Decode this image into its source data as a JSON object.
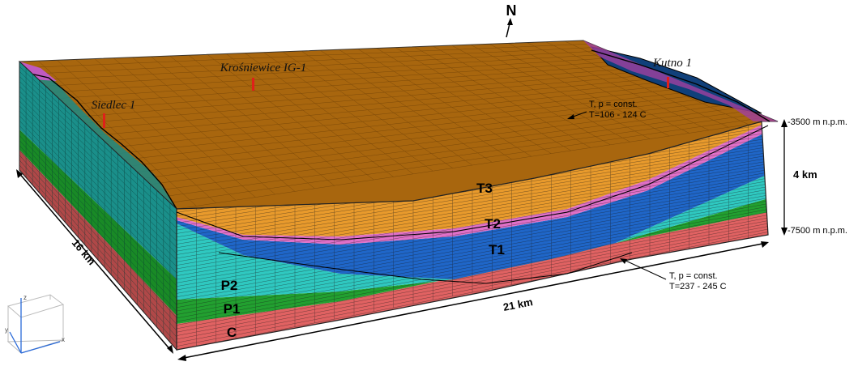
{
  "layers": [
    {
      "id": "T3",
      "label": "T3",
      "color": "#e89a2c"
    },
    {
      "id": "T2",
      "label": "T2",
      "color": "#e070c8"
    },
    {
      "id": "T1",
      "label": "T1",
      "color": "#1f66c8"
    },
    {
      "id": "P2",
      "label": "P2",
      "color": "#2fc8c0"
    },
    {
      "id": "P1",
      "label": "P1",
      "color": "#22a030"
    },
    {
      "id": "C",
      "label": "C",
      "color": "#e06262"
    }
  ],
  "surface_color": "#a8660e",
  "wells": [
    {
      "id": "krosniewice",
      "label": "Krośniewice IG-1"
    },
    {
      "id": "kutno",
      "label": "Kutno 1"
    },
    {
      "id": "siedlec",
      "label": "Siedlec 1"
    }
  ],
  "annotations": {
    "north": "N",
    "top_temp_line1": "T, p = const.",
    "top_temp_line2": "T=106 - 124 C",
    "bottom_temp_line1": "T, p = const.",
    "bottom_temp_line2": "T=237 - 245 C",
    "depth_top": "-3500 m n.p.m.",
    "depth_bottom": "-7500 m n.p.m.",
    "thickness": "4 km",
    "width": "21 km",
    "depth_extent": "16 km"
  },
  "axes_triad": {
    "x": "x",
    "y": "y",
    "z": "z"
  }
}
